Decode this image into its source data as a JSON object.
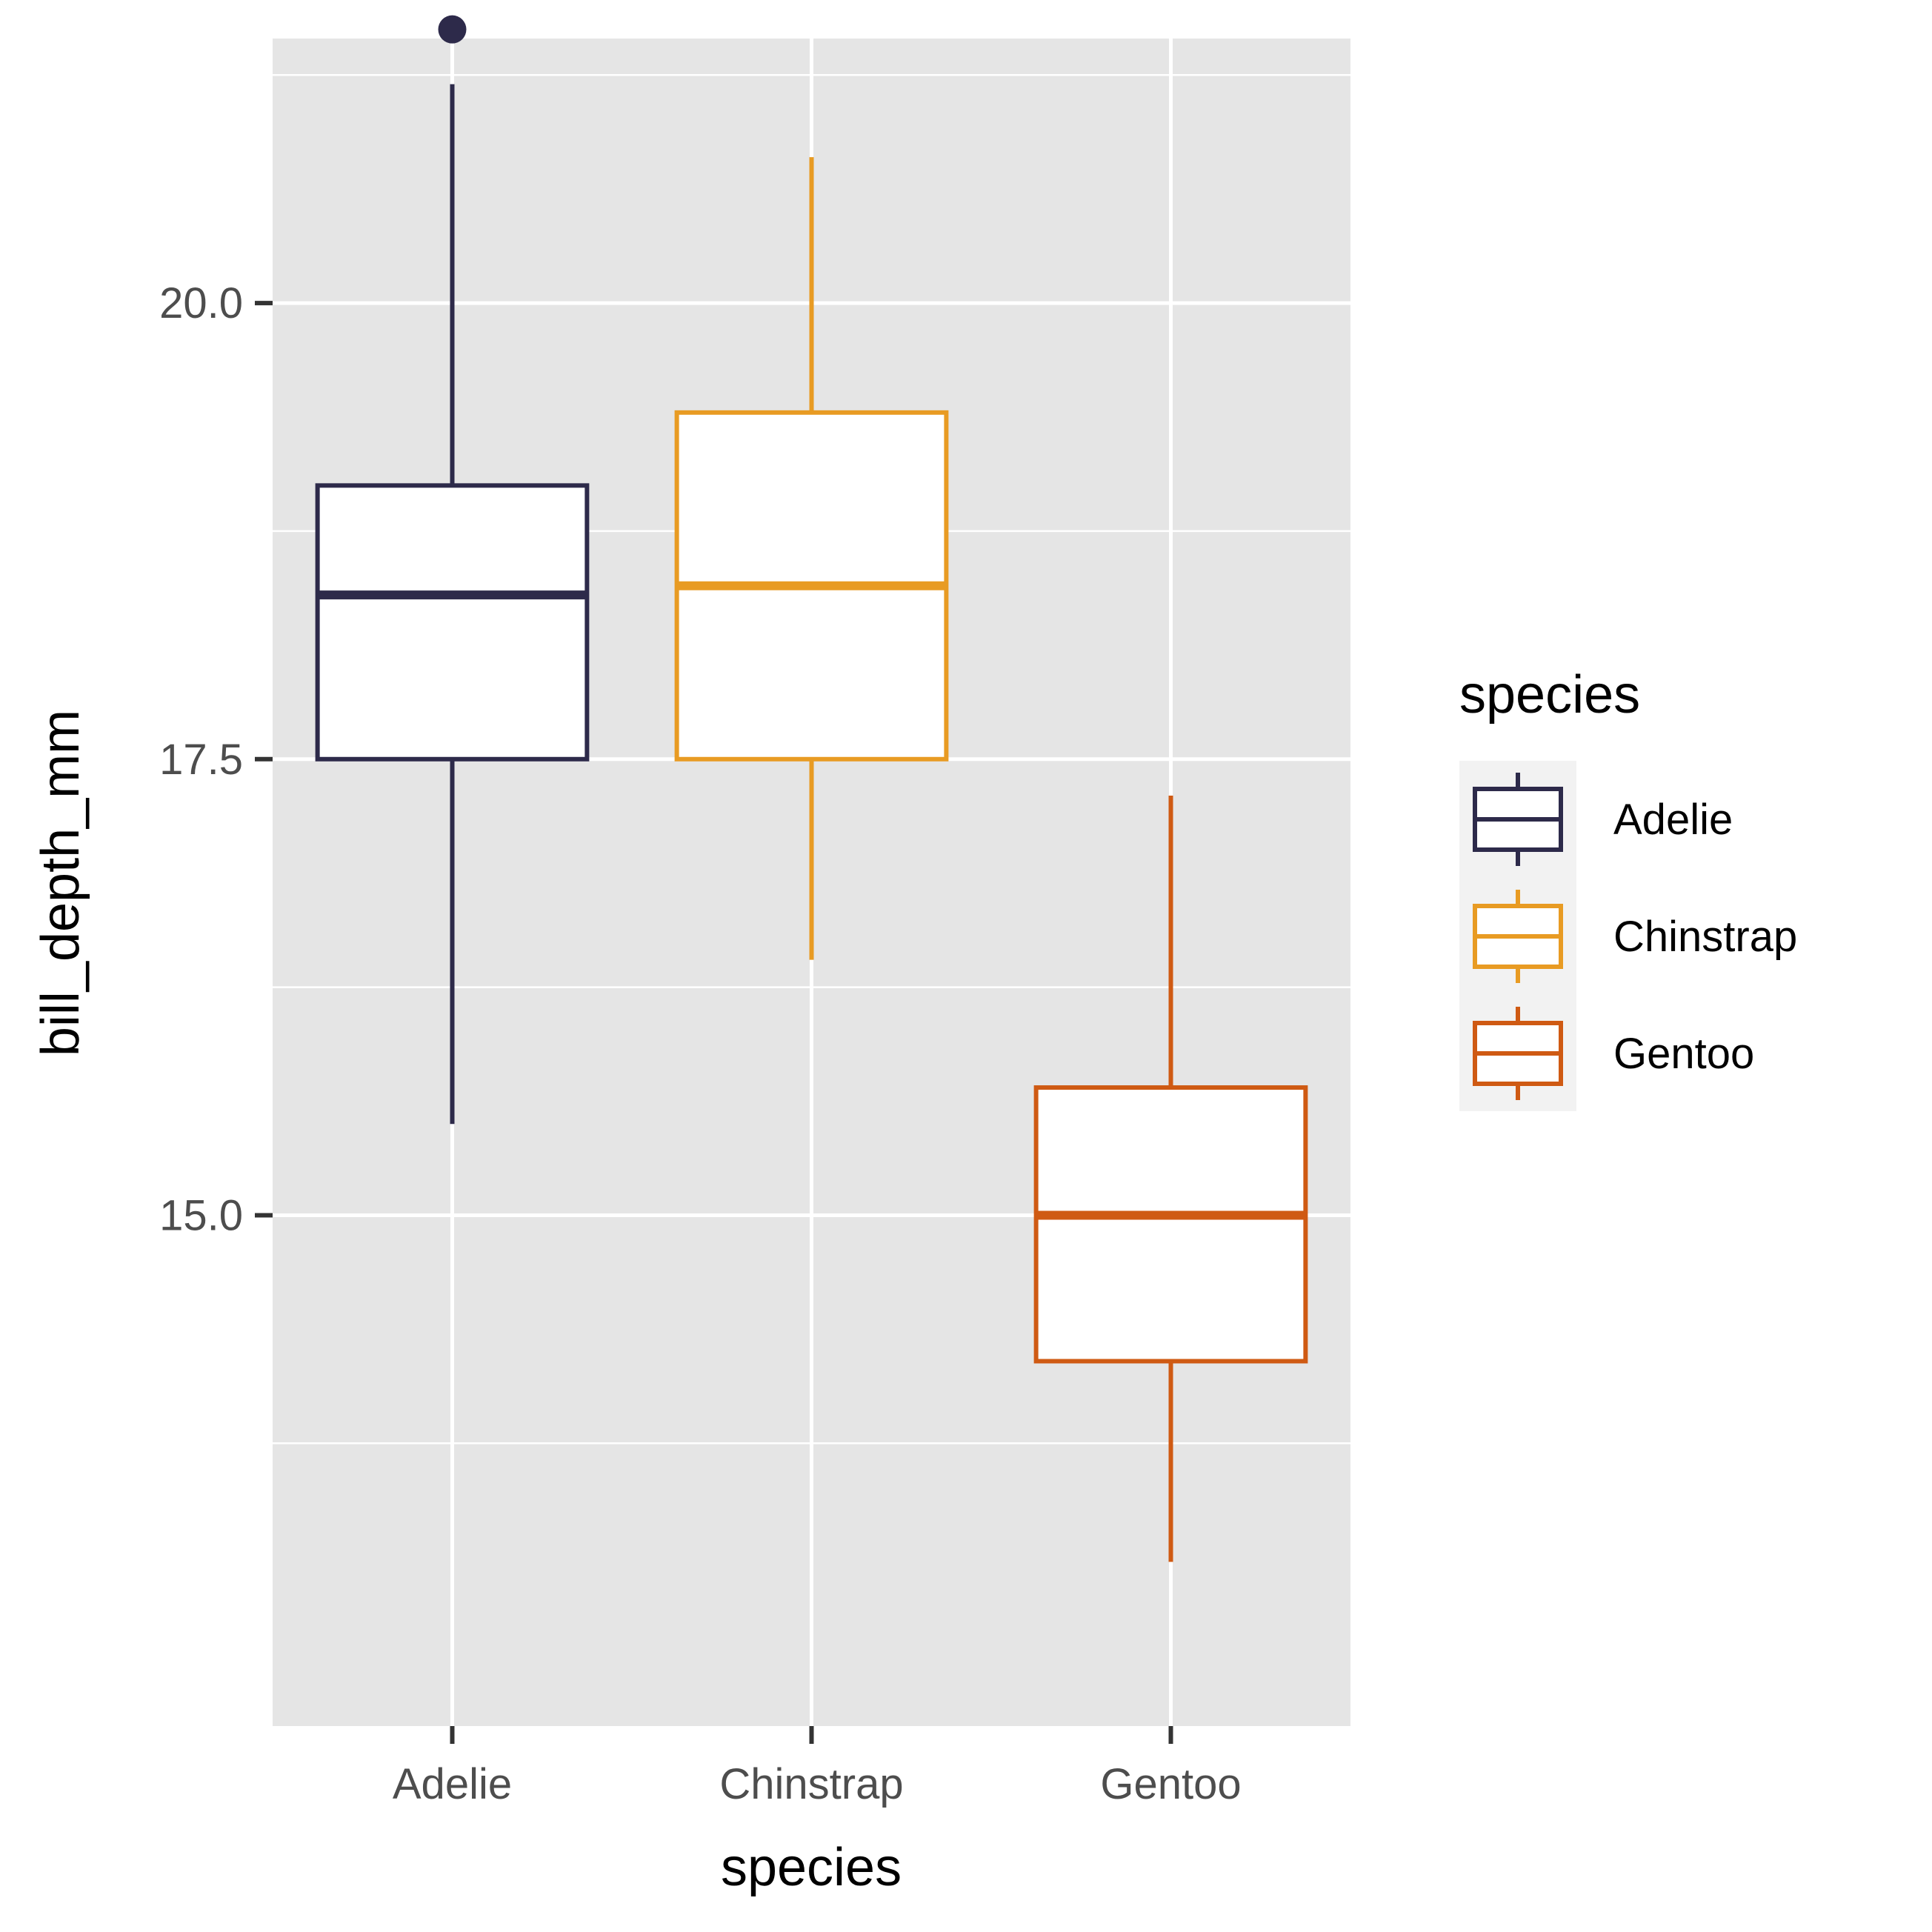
{
  "chart_data": {
    "type": "boxplot",
    "xlabel": "species",
    "ylabel": "bill_depth_mm",
    "categories": [
      "Adelie",
      "Chinstrap",
      "Gentoo"
    ],
    "ylim": [
      12.2,
      21.45
    ],
    "yticks": [
      15.0,
      17.5,
      20.0
    ],
    "ytick_labels": [
      "15.0",
      "17.5",
      "20.0"
    ],
    "grid": true,
    "legend": {
      "title": "species",
      "position": "right",
      "entries": [
        "Adelie",
        "Chinstrap",
        "Gentoo"
      ]
    },
    "series": [
      {
        "name": "Adelie",
        "color": "#2d2a4a",
        "whisker_low": 15.5,
        "q1": 17.5,
        "median": 18.4,
        "q3": 19.0,
        "whisker_high": 21.2,
        "outliers": [
          21.5
        ]
      },
      {
        "name": "Chinstrap",
        "color": "#e89b23",
        "whisker_low": 16.4,
        "q1": 17.5,
        "median": 18.45,
        "q3": 19.4,
        "whisker_high": 20.8,
        "outliers": []
      },
      {
        "name": "Gentoo",
        "color": "#cf5a13",
        "whisker_low": 13.1,
        "q1": 14.2,
        "median": 15.0,
        "q3": 15.7,
        "whisker_high": 17.3,
        "outliers": []
      }
    ]
  }
}
